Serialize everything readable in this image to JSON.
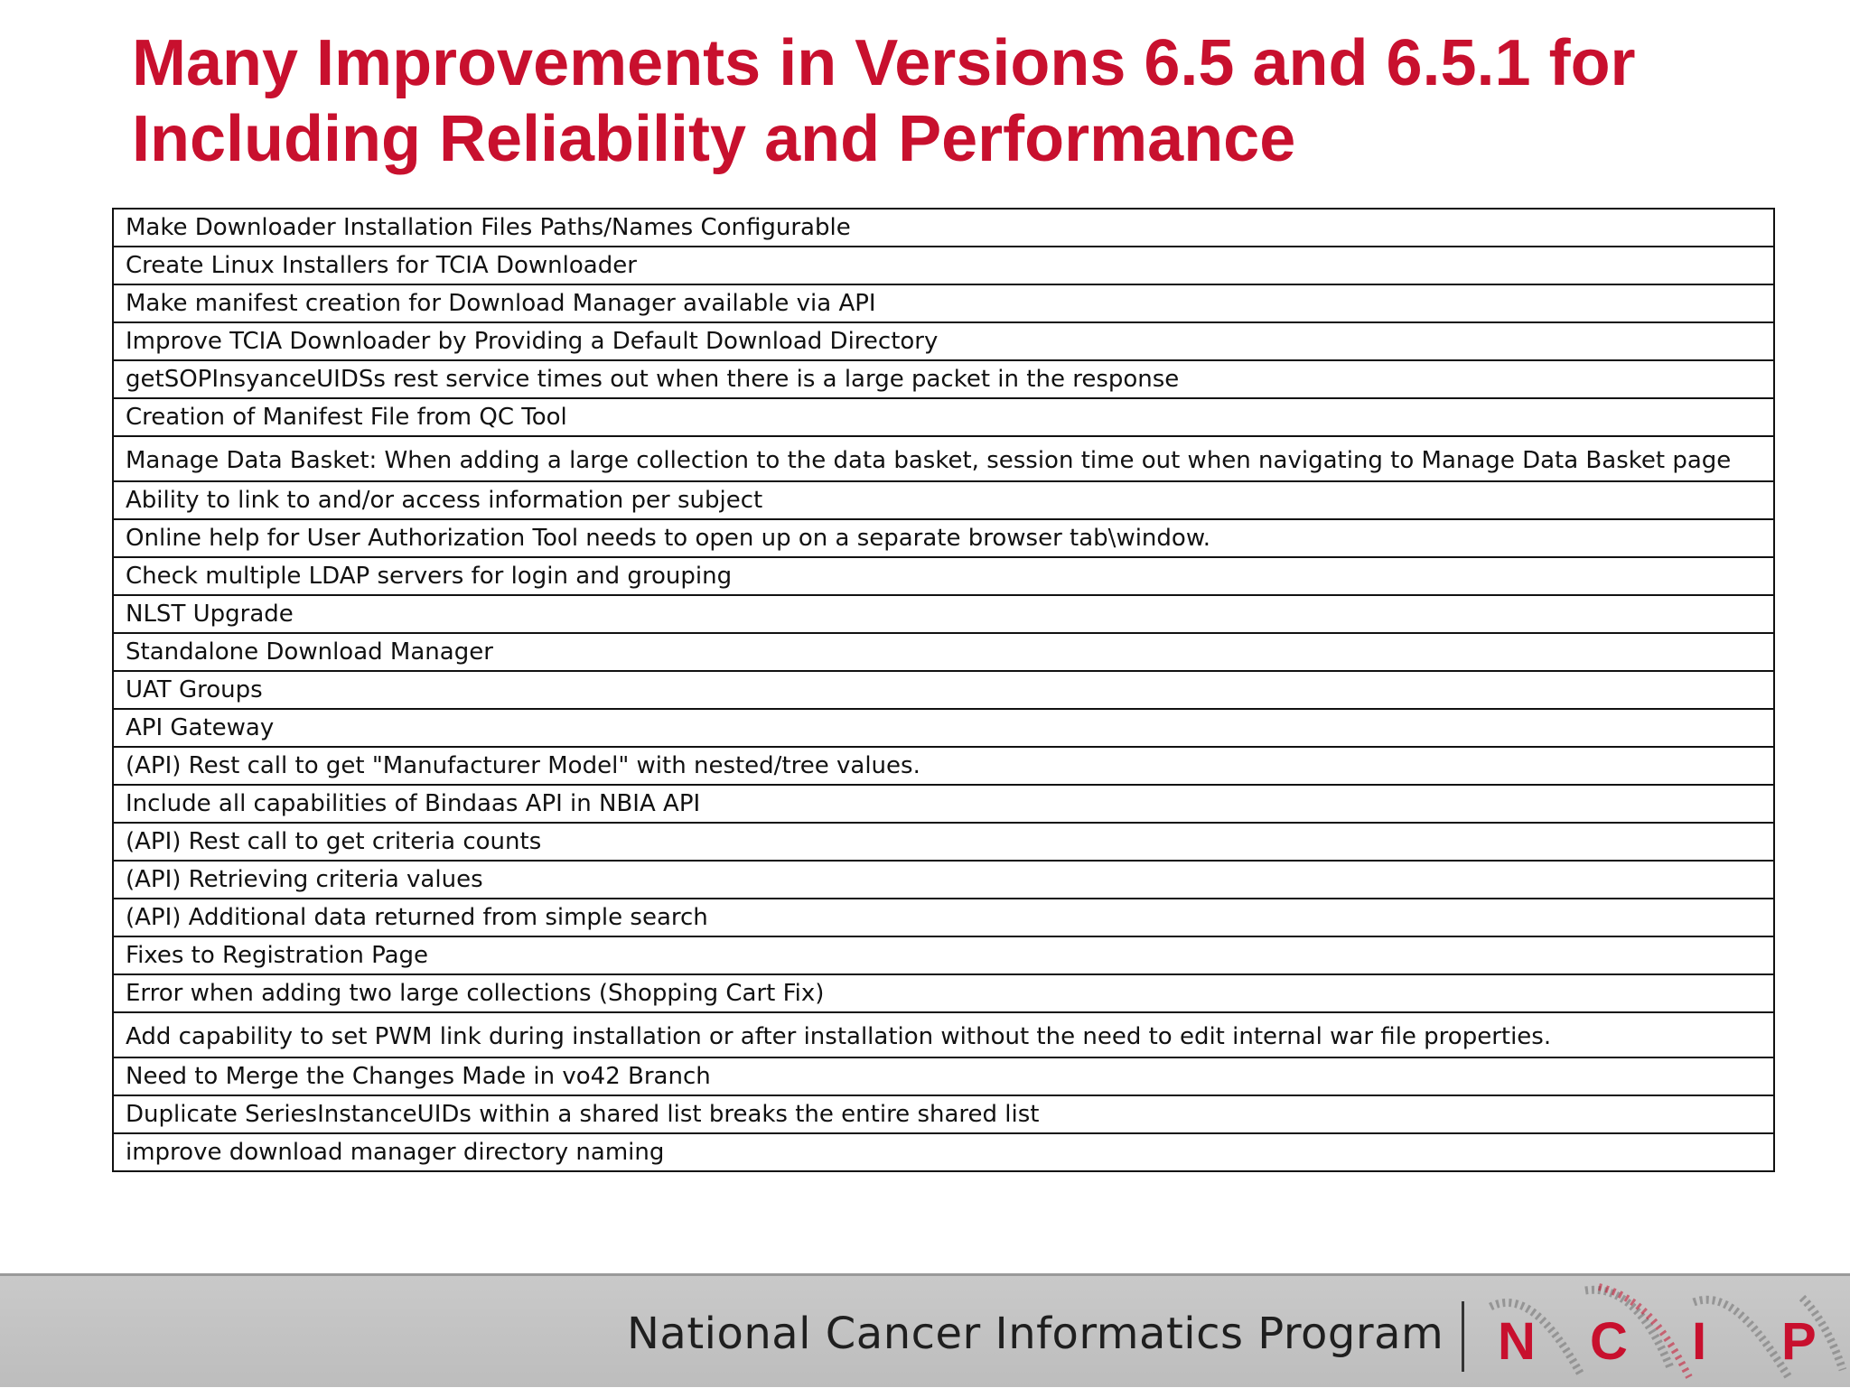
{
  "title": {
    "line1": "Many Improvements in Versions 6.5 and 6.5.1 for",
    "line2": "Including Reliability and Performance"
  },
  "items": [
    "Make Downloader Installation Files Paths/Names Configurable",
    "Create Linux Installers for TCIA Downloader",
    "Make manifest creation for Download Manager available via API",
    "Improve TCIA Downloader by Providing a Default Download Directory",
    "getSOPInsyanceUIDSs rest service times out when there is a large packet in the response",
    "Creation of Manifest File from QC Tool",
    "Manage Data Basket: When adding a large collection to the data basket, session time out when navigating to Manage Data Basket page",
    "Ability to link to  and/or access information per subject",
    "Online help for User Authorization Tool needs to open up on a separate browser tab\\window.",
    "Check multiple LDAP servers for login and grouping",
    "NLST Upgrade",
    "Standalone Download Manager",
    "UAT Groups",
    "API Gateway",
    "(API) Rest call to get \"Manufacturer Model\" with nested/tree values.",
    "Include all capabilities of Bindaas API in NBIA API",
    "(API)  Rest call to get criteria counts",
    "(API) Retrieving criteria values",
    "(API) Additional data returned from simple search",
    "Fixes to Registration Page",
    "Error when adding two large collections (Shopping Cart Fix)",
    "Add capability to set PWM link during installation or after installation without the need to edit internal war file properties.",
    "Need to Merge the Changes Made in vo42 Branch",
    "Duplicate SeriesInstanceUIDs within a shared list breaks the entire shared list",
    "improve download manager directory naming"
  ],
  "footer": {
    "program_name": "National Cancer Informatics Program",
    "logo_letters": [
      "N",
      "C",
      "I",
      "P"
    ]
  },
  "colors": {
    "title": "#c8102e",
    "logo_letters": "#c8102e",
    "footer_background": "#c4c4c4"
  }
}
